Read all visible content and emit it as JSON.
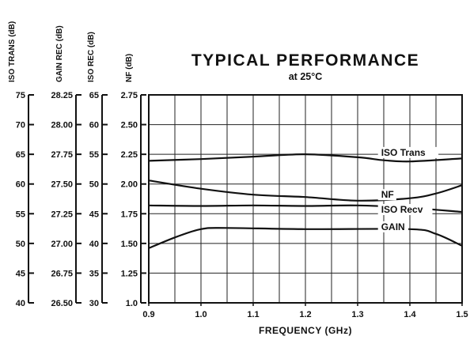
{
  "chart_data": {
    "type": "line",
    "title": "TYPICAL PERFORMANCE",
    "subtitle": "at 25°C",
    "xlabel": "FREQUENCY (GHz)",
    "xlim": [
      0.9,
      1.5
    ],
    "x_ticks": [
      "0.9",
      "1.0",
      "1.1",
      "1.2",
      "1.3",
      "1.4",
      "1.5"
    ],
    "grid": true,
    "y_axes": [
      {
        "label": "ISO TRANS (dB)",
        "range": [
          40,
          75
        ],
        "ticks": [
          "75",
          "70",
          "65",
          "60",
          "55",
          "50",
          "45",
          "40"
        ]
      },
      {
        "label": "GAIN REC (dB)",
        "range": [
          26.5,
          28.25
        ],
        "ticks": [
          "28.25",
          "28.00",
          "27.75",
          "27.50",
          "27.25",
          "27.00",
          "26.75",
          "26.50"
        ]
      },
      {
        "label": "ISO REC (dB)",
        "range": [
          30,
          65
        ],
        "ticks": [
          "65",
          "60",
          "55",
          "50",
          "45",
          "40",
          "35",
          "30"
        ]
      },
      {
        "label": "NF (dB)",
        "range": [
          1.0,
          2.75
        ],
        "ticks": [
          "2.75",
          "2.50",
          "2.25",
          "2.00",
          "1.75",
          "1.50",
          "1.25",
          "1.0"
        ]
      }
    ],
    "series": [
      {
        "name": "ISO Trans",
        "axis": "ISO TRANS (dB)",
        "x": [
          0.9,
          1.0,
          1.1,
          1.2,
          1.3,
          1.35,
          1.4,
          1.5
        ],
        "y": [
          63.9,
          64.2,
          64.6,
          65.0,
          64.5,
          64.0,
          63.8,
          64.3
        ]
      },
      {
        "name": "NF",
        "axis": "NF (dB)",
        "x": [
          0.9,
          1.0,
          1.1,
          1.2,
          1.3,
          1.4,
          1.45,
          1.5
        ],
        "y": [
          2.03,
          1.96,
          1.91,
          1.89,
          1.86,
          1.88,
          1.92,
          1.99
        ]
      },
      {
        "name": "ISO Recv",
        "axis": "ISO REC (dB)",
        "x": [
          0.9,
          1.0,
          1.1,
          1.2,
          1.3,
          1.4,
          1.5
        ],
        "y": [
          46.4,
          46.3,
          46.4,
          46.3,
          46.4,
          46.0,
          45.3
        ]
      },
      {
        "name": "GAIN",
        "axis": "GAIN REC (dB)",
        "x": [
          0.9,
          0.95,
          1.0,
          1.05,
          1.2,
          1.4,
          1.45,
          1.5
        ],
        "y": [
          26.96,
          27.05,
          27.12,
          27.13,
          27.12,
          27.12,
          27.08,
          26.98
        ]
      }
    ]
  }
}
